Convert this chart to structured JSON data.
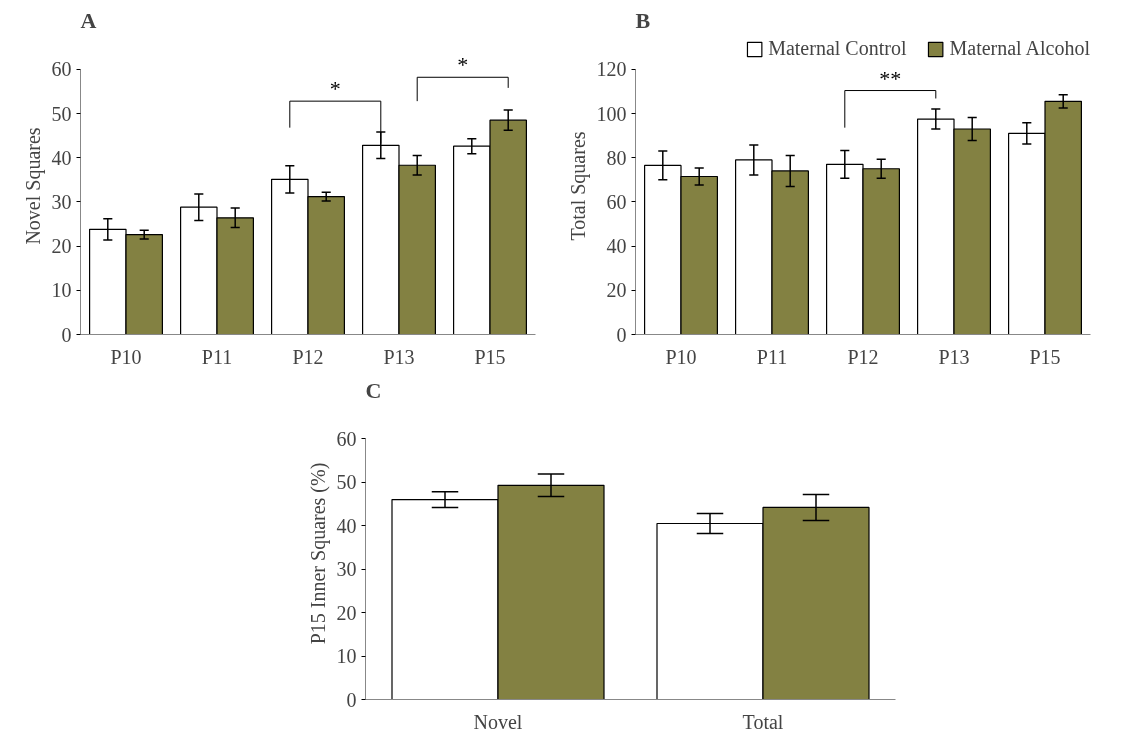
{
  "chart_data": [
    {
      "type": "bar",
      "title": "A",
      "ylabel": "Novel Squares",
      "categories": [
        "P10",
        "P11",
        "P12",
        "P13",
        "P15"
      ],
      "ylim": [
        0,
        60
      ],
      "yticks": [
        0,
        10,
        20,
        30,
        40,
        50,
        60
      ],
      "grid": false,
      "legend": false,
      "series": [
        {
          "color": "#ffffff",
          "values": [
            23.8,
            28.8,
            35.1,
            42.8,
            42.6
          ],
          "errors": [
            2.4,
            3.0,
            3.1,
            3.0,
            1.7
          ]
        },
        {
          "color": "#838142",
          "values": [
            22.6,
            26.4,
            31.2,
            38.3,
            48.5
          ],
          "errors": [
            1.0,
            2.2,
            1.0,
            2.2,
            2.3
          ]
        }
      ],
      "annotations": [
        "*",
        "*"
      ]
    },
    {
      "type": "bar",
      "title": "B",
      "ylabel": "Total Squares",
      "categories": [
        "P10",
        "P11",
        "P12",
        "P13",
        "P15"
      ],
      "ylim": [
        0,
        120
      ],
      "yticks": [
        0,
        20,
        40,
        60,
        80,
        100,
        120
      ],
      "grid": false,
      "legend": "top right",
      "series": [
        {
          "name": "Maternal Control",
          "color": "#ffffff",
          "values": [
            76.5,
            79,
            77,
            97.5,
            91
          ],
          "errors": [
            6.5,
            6.8,
            6.3,
            4.5,
            4.8
          ]
        },
        {
          "name": "Maternal Alcohol",
          "color": "#838142",
          "values": [
            71.5,
            74,
            75,
            93,
            105.5
          ],
          "errors": [
            3.8,
            7,
            4.3,
            5.2,
            3
          ]
        }
      ],
      "annotations": [
        "**"
      ]
    },
    {
      "type": "bar",
      "title": "C",
      "ylabel": "P15 Inner Squares (%)",
      "categories": [
        "Novel",
        "Total"
      ],
      "ylim": [
        0,
        60
      ],
      "yticks": [
        0,
        10,
        20,
        30,
        40,
        50,
        60
      ],
      "grid": false,
      "legend": false,
      "series": [
        {
          "color": "#ffffff",
          "values": [
            46,
            40.5
          ],
          "errors": [
            1.8,
            2.3
          ]
        },
        {
          "color": "#838142",
          "values": [
            49.3,
            44.2
          ],
          "errors": [
            2.6,
            3
          ]
        }
      ]
    }
  ]
}
